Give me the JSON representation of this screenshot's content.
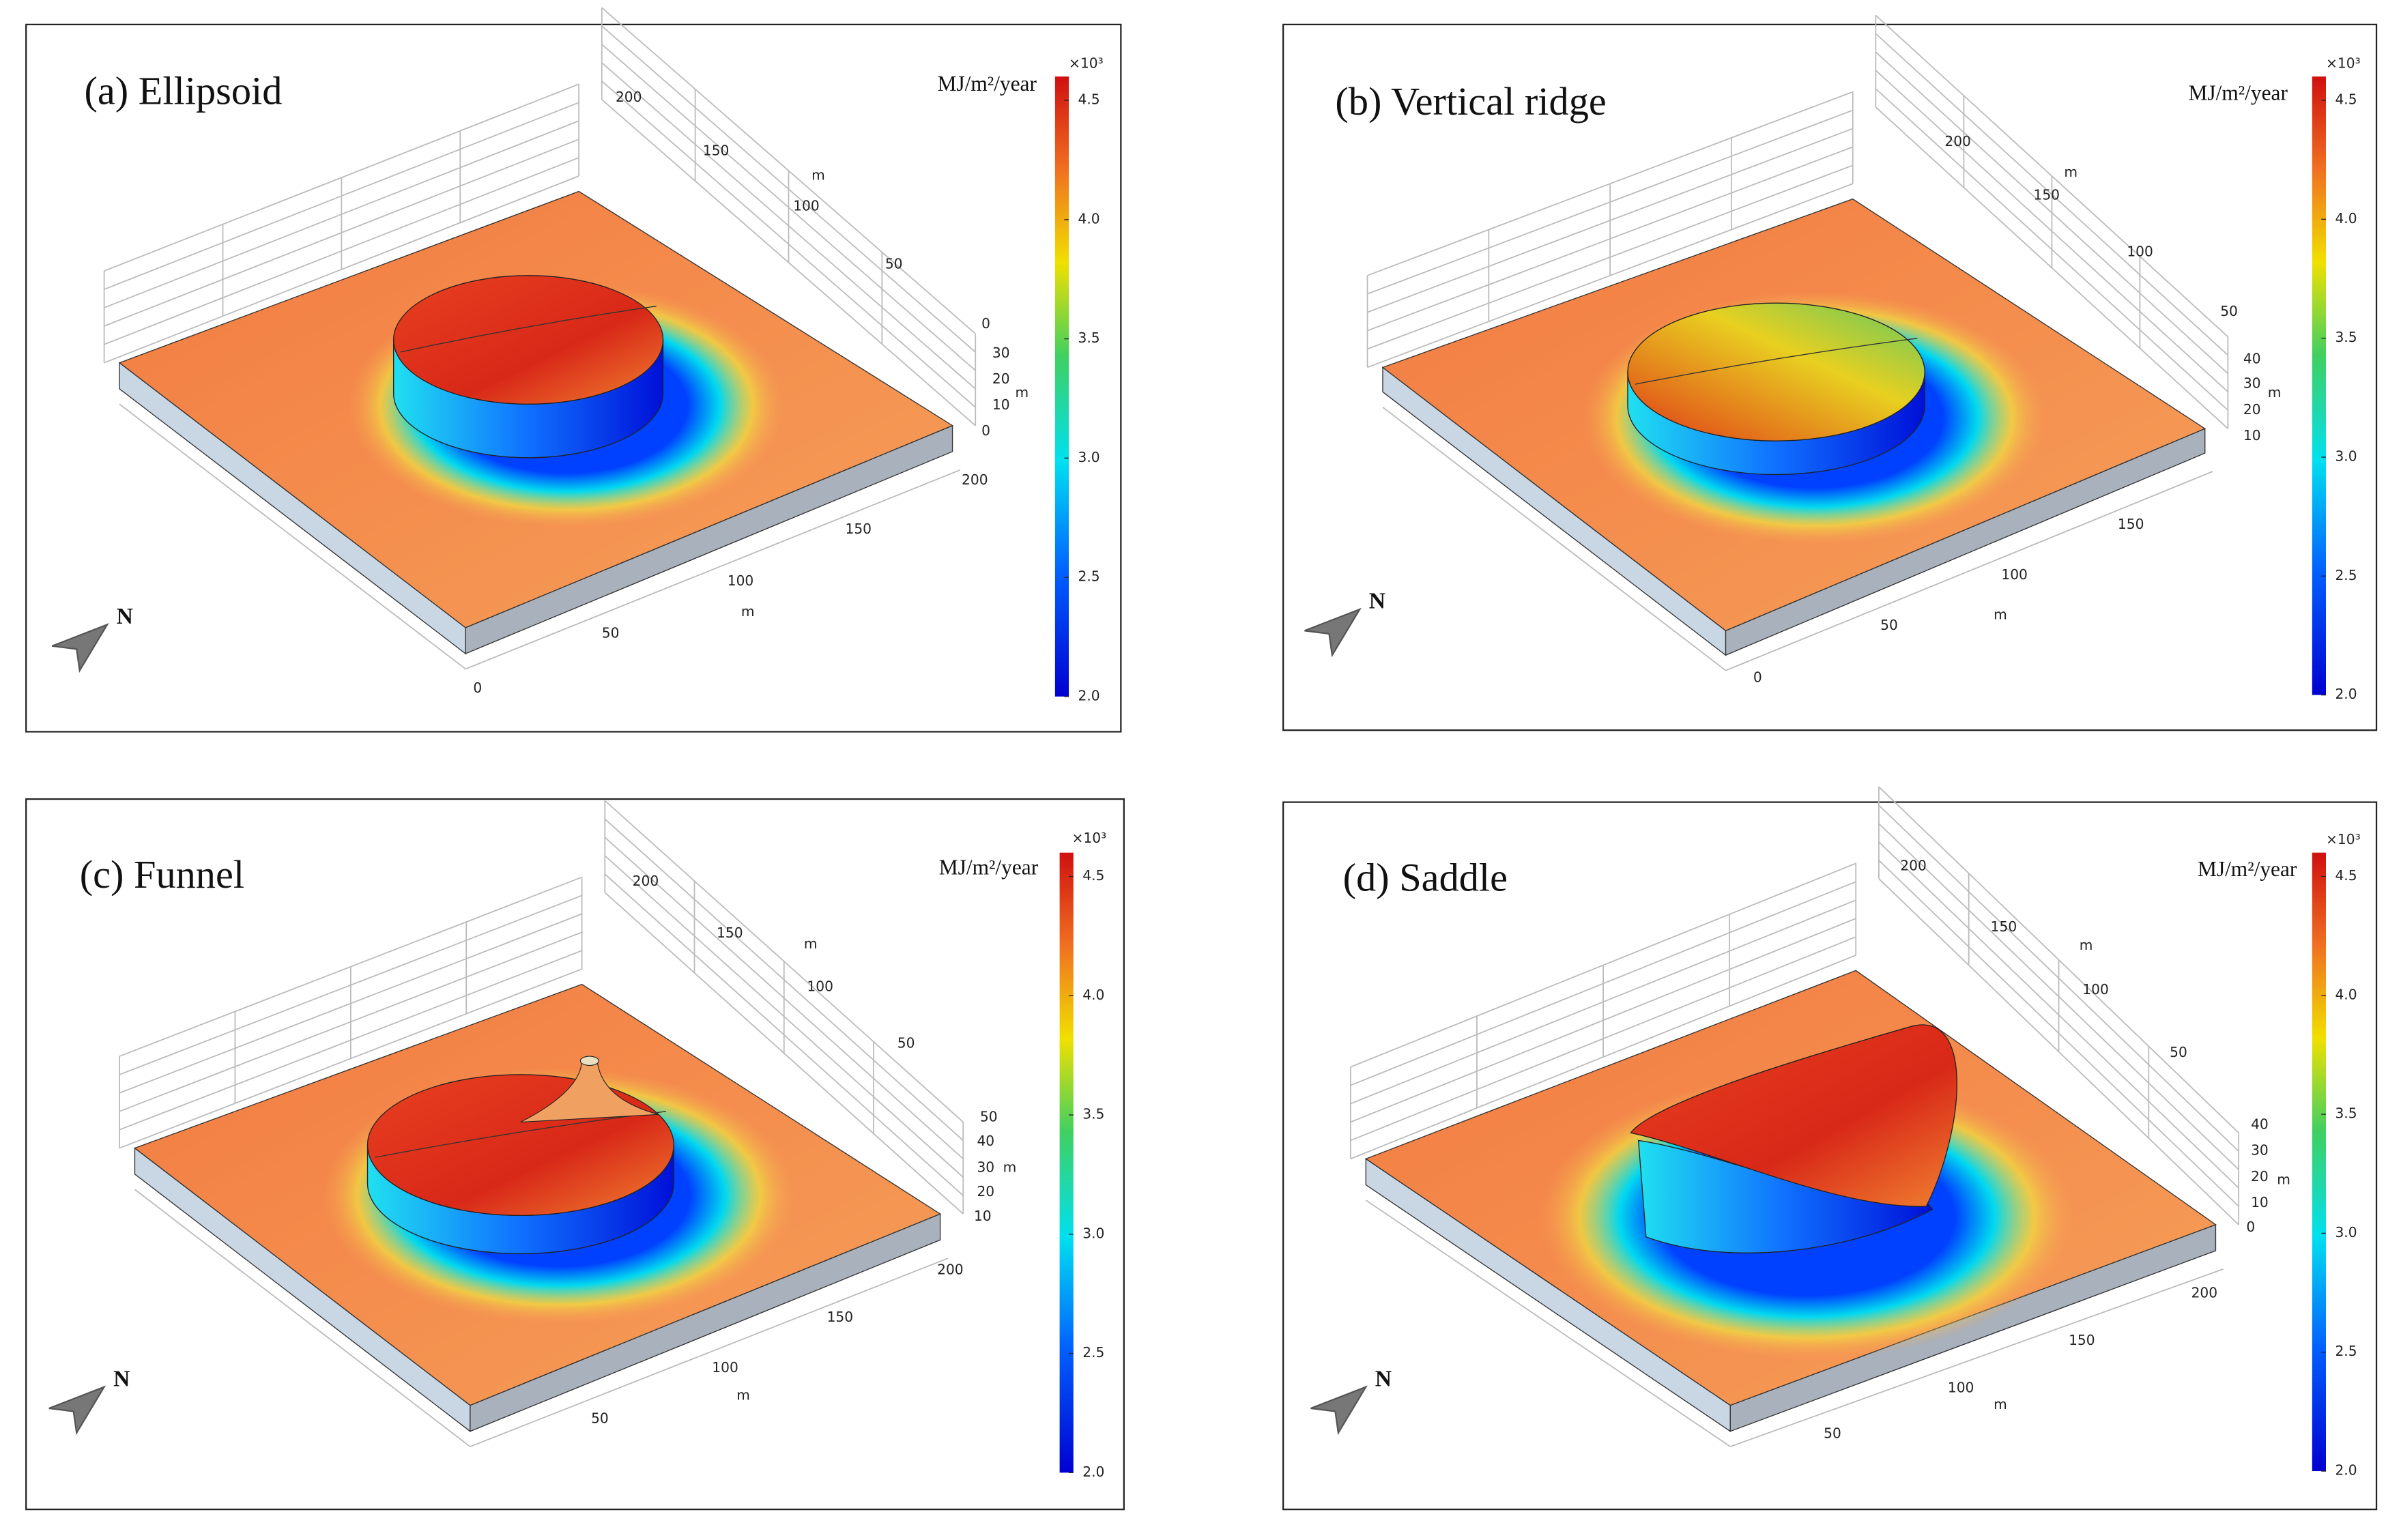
{
  "panels": [
    {
      "title": "(a) Ellipsoid",
      "unit": "MJ/m²/year",
      "multiplier": "×10³",
      "north": "N",
      "colorbar": {
        "lim": [
          2,
          4.6
        ],
        "ticks": [
          {
            "value": 2,
            "label": "2.0"
          },
          2.5,
          {
            "value": 3,
            "label": "3.0"
          },
          3.5,
          {
            "value": 4,
            "label": "4.0"
          },
          4.5
        ]
      },
      "back_axis": {
        "ticks": [
          200,
          150,
          100,
          50,
          0
        ],
        "unit": "m"
      },
      "z_axis": {
        "ticks": [
          30,
          20,
          10,
          0
        ],
        "unit": "m"
      },
      "front_axis": {
        "ticks": [
          200,
          150,
          100,
          50,
          0
        ],
        "unit": "m"
      }
    },
    {
      "title": "(b) Vertical ridge",
      "unit": "MJ/m²/year",
      "multiplier": "×10³",
      "north": "N",
      "colorbar": {
        "lim": [
          2,
          4.6
        ],
        "ticks": [
          {
            "value": 2,
            "label": "2.0"
          },
          2.5,
          {
            "value": 3,
            "label": "3.0"
          },
          3.5,
          {
            "value": 4,
            "label": "4.0"
          },
          4.5
        ]
      },
      "back_axis": {
        "ticks": [
          200,
          150,
          100,
          50
        ],
        "unit": "m"
      },
      "z_axis": {
        "ticks": [
          40,
          30,
          20,
          10
        ],
        "unit": "m"
      },
      "front_axis": {
        "ticks": [
          150,
          100,
          50,
          0
        ],
        "unit": "m"
      }
    },
    {
      "title": "(c) Funnel",
      "unit": "MJ/m²/year",
      "multiplier": "×10³",
      "north": "N",
      "colorbar": {
        "lim": [
          2,
          4.6
        ],
        "ticks": [
          {
            "value": 2,
            "label": "2.0"
          },
          2.5,
          {
            "value": 3,
            "label": "3.0"
          },
          3.5,
          {
            "value": 4,
            "label": "4.0"
          },
          4.5
        ]
      },
      "back_axis": {
        "ticks": [
          200,
          150,
          100,
          50
        ],
        "unit": "m"
      },
      "z_axis": {
        "ticks": [
          50,
          40,
          30,
          20,
          10
        ],
        "unit": "m"
      },
      "front_axis": {
        "ticks": [
          200,
          150,
          100,
          50
        ],
        "unit": "m"
      }
    },
    {
      "title": "(d) Saddle",
      "unit": "MJ/m²/year",
      "multiplier": "×10³",
      "north": "N",
      "colorbar": {
        "lim": [
          2,
          4.6
        ],
        "ticks": [
          {
            "value": 2,
            "label": "2.0"
          },
          2.5,
          {
            "value": 3,
            "label": "3.0"
          },
          3.5,
          {
            "value": 4,
            "label": "4.0"
          },
          4.5
        ]
      },
      "back_axis": {
        "ticks": [
          200,
          150,
          100,
          50
        ],
        "unit": "m"
      },
      "z_axis": {
        "ticks": [
          40,
          30,
          20,
          10,
          0
        ],
        "unit": "m"
      },
      "front_axis": {
        "ticks": [
          200,
          150,
          100,
          50
        ],
        "unit": "m"
      }
    }
  ]
}
